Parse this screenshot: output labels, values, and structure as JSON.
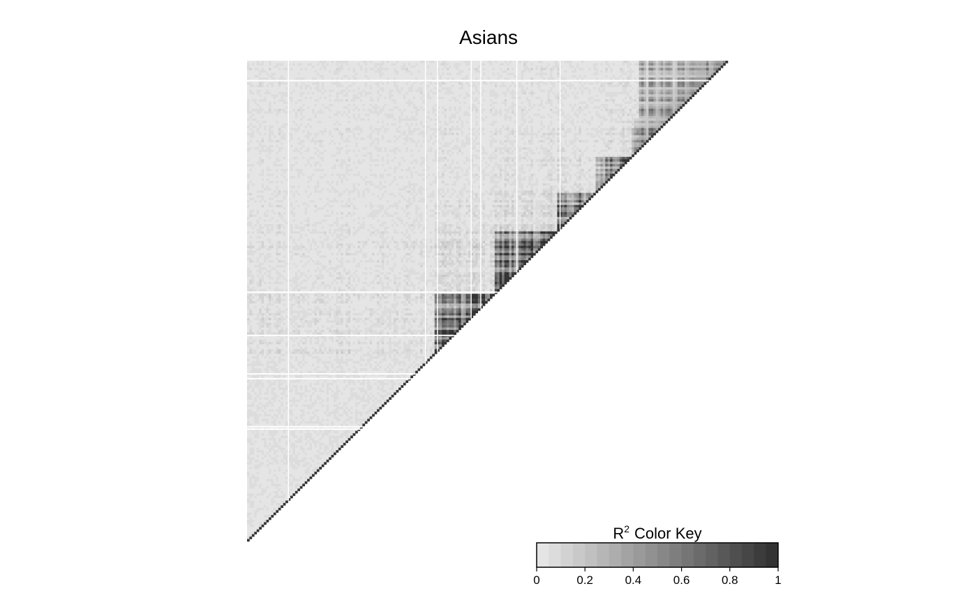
{
  "chart_data": {
    "type": "heatmap",
    "title": "Asians",
    "subtype": "linkage-disequilibrium-triangle",
    "xlabel": "",
    "ylabel": "",
    "value_label": "R2",
    "color_key": {
      "title_main": "R",
      "title_sup": "2",
      "title_rest": "Color Key",
      "range": [
        0,
        1
      ],
      "ticks": [
        0,
        0.2,
        0.4,
        0.6,
        0.8,
        1
      ],
      "tick_labels": [
        "0",
        "0.2",
        "0.4",
        "0.6",
        "0.8",
        "1"
      ],
      "n_colors": 20,
      "color_low": "#e5e5e5",
      "color_high": "#333333"
    },
    "blank_rows": [
      8,
      96,
      114,
      130,
      132,
      152,
      153
    ],
    "blank_cols": [
      17,
      74,
      79,
      93,
      97,
      112,
      130
    ],
    "blocks": [
      {
        "start": 0,
        "end": 77,
        "mean_r2": 0.04
      },
      {
        "start": 78,
        "end": 102,
        "mean_r2": 0.22
      },
      {
        "start": 103,
        "end": 128,
        "mean_r2": 0.32
      },
      {
        "start": 129,
        "end": 144,
        "mean_r2": 0.22
      },
      {
        "start": 145,
        "end": 159,
        "mean_r2": 0.18
      },
      {
        "start": 160,
        "end": 175,
        "mean_r2": 0.12
      },
      {
        "start": 176,
        "end": 199,
        "mean_r2": 0.2
      }
    ],
    "n_markers": 200
  }
}
